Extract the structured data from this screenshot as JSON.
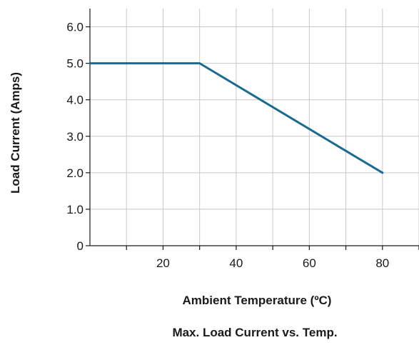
{
  "chart_data": {
    "type": "line",
    "title": "Max. Load Current vs. Temp.",
    "xlabel": "Ambient Temperature (ºC)",
    "ylabel": "Load Current (Amps)",
    "xlim": [
      0,
      90
    ],
    "ylim": [
      0,
      6.5
    ],
    "x_ticks": [
      20,
      40,
      60,
      80
    ],
    "x_tick_labels": [
      "20",
      "40",
      "60",
      "80"
    ],
    "x_grid": [
      10,
      20,
      30,
      40,
      50,
      60,
      70,
      80,
      90
    ],
    "y_ticks": [
      0,
      1,
      2,
      3,
      4,
      5,
      6
    ],
    "y_tick_labels": [
      "0",
      "1.0",
      "2.0",
      "3.0",
      "4.0",
      "5.0",
      "6.0"
    ],
    "grid": true,
    "series": [
      {
        "x": [
          0,
          30,
          80
        ],
        "y": [
          5.0,
          5.0,
          2.0
        ],
        "color": "#1b6a8f"
      }
    ]
  }
}
